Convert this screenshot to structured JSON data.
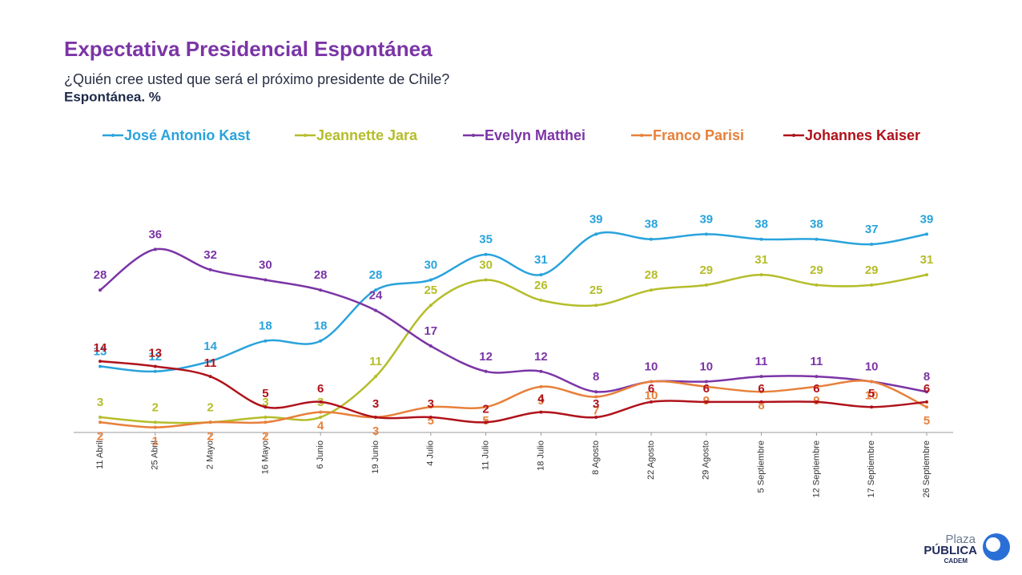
{
  "chart_data": {
    "type": "line",
    "title": "Expectativa Presidencial Espontánea",
    "subtitle": "¿Quién cree usted que será el próximo presidente de Chile?",
    "note": "Espontánea. %",
    "categories": [
      "11 Abril",
      "25 Abril",
      "2 Mayo",
      "16 Mayo",
      "6 Junio",
      "19 Junio",
      "4 Julio",
      "11 Julio",
      "18 Julio",
      "8 Agosto",
      "22 Agosto",
      "29 Agosto",
      "5 Septiembre",
      "12 Septiembre",
      "17 Septiembre",
      "26 Septiembre"
    ],
    "series": [
      {
        "name": "José Antonio Kast",
        "color": "#29a3dc",
        "values": [
          13,
          12,
          14,
          18,
          18,
          28,
          30,
          35,
          31,
          39,
          38,
          39,
          38,
          38,
          37,
          39
        ]
      },
      {
        "name": "Jeannette Jara",
        "color": "#b5bd2a",
        "values": [
          3,
          2,
          2,
          3,
          3,
          11,
          25,
          30,
          26,
          25,
          28,
          29,
          31,
          29,
          29,
          31
        ]
      },
      {
        "name": "Evelyn Matthei",
        "color": "#7b35a6",
        "values": [
          28,
          36,
          32,
          30,
          28,
          24,
          17,
          12,
          12,
          8,
          10,
          10,
          11,
          11,
          10,
          8
        ]
      },
      {
        "name": "Franco Parisi",
        "color": "#e8803a",
        "values": [
          2,
          1,
          2,
          2,
          4,
          3,
          5,
          5,
          9,
          7,
          10,
          9,
          8,
          9,
          10,
          5
        ]
      },
      {
        "name": "Johannes Kaiser",
        "color": "#b0121b",
        "values": [
          14,
          13,
          11,
          5,
          6,
          3,
          3,
          2,
          4,
          3,
          6,
          6,
          6,
          6,
          5,
          6
        ]
      }
    ],
    "ylim": [
      0,
      40
    ],
    "legend": "top"
  },
  "logo": {
    "line1": "Plaza",
    "line2": "PÚBLICA",
    "line3": "CADEM"
  }
}
